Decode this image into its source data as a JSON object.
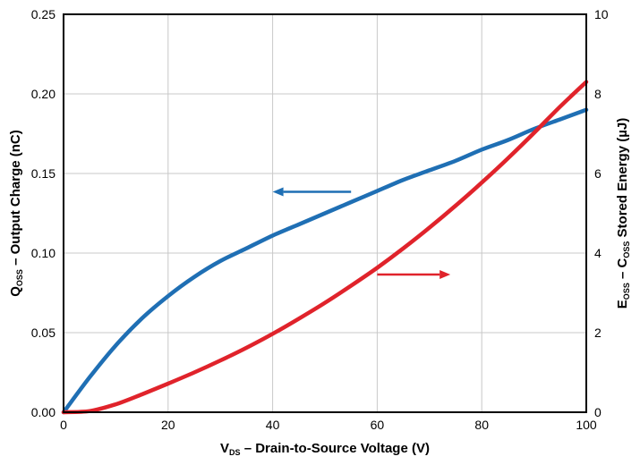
{
  "chart_data": {
    "type": "line",
    "title": "",
    "xlabel": {
      "main": "V",
      "sub": "DS",
      "rest": " – Drain-to-Source Voltage (V)"
    },
    "ylabel_left": {
      "main": "Q",
      "sub": "OSS",
      "rest": " – Output Charge (nC)"
    },
    "ylabel_right": {
      "main": "E",
      "sub": "OSS",
      "mid": " – C",
      "sub2": "OSS",
      "rest": " Stored Energy (µJ)"
    },
    "xlim": [
      0,
      100
    ],
    "ylim_left": [
      0,
      0.25
    ],
    "ylim_right": [
      0,
      10
    ],
    "x_ticks": [
      "0",
      "20",
      "40",
      "60",
      "80",
      "100"
    ],
    "y_left_ticks": [
      "0.00",
      "0.05",
      "0.10",
      "0.15",
      "0.20",
      "0.25"
    ],
    "y_right_ticks": [
      "0",
      "2",
      "4",
      "6",
      "8",
      "10"
    ],
    "grid": true,
    "series": [
      {
        "axis": "left",
        "color": "#1f6fb4",
        "x": [
          0,
          5,
          10,
          15,
          20,
          25,
          30,
          35,
          40,
          45,
          50,
          55,
          60,
          65,
          70,
          75,
          80,
          85,
          90,
          95,
          100
        ],
        "y": [
          0.0,
          0.022,
          0.042,
          0.059,
          0.073,
          0.085,
          0.095,
          0.103,
          0.111,
          0.118,
          0.125,
          0.132,
          0.139,
          0.146,
          0.152,
          0.158,
          0.165,
          0.171,
          0.178,
          0.184,
          0.19
        ]
      },
      {
        "axis": "right",
        "color": "#e0232b",
        "x": [
          0,
          5,
          10,
          15,
          20,
          25,
          30,
          35,
          40,
          45,
          50,
          55,
          60,
          65,
          70,
          75,
          80,
          85,
          90,
          95,
          100
        ],
        "y": [
          0.0,
          0.03,
          0.2,
          0.45,
          0.72,
          1.0,
          1.3,
          1.62,
          1.97,
          2.35,
          2.75,
          3.18,
          3.63,
          4.12,
          4.64,
          5.19,
          5.77,
          6.38,
          7.02,
          7.68,
          8.3
        ]
      }
    ],
    "annotations": [
      {
        "type": "arrow",
        "series": 0,
        "direction": "left",
        "x_from": 55,
        "x_to": 40,
        "y": 0.1385
      },
      {
        "type": "arrow",
        "series": 1,
        "direction": "right",
        "x_from": 60,
        "x_to": 74,
        "y": 3.46
      }
    ]
  }
}
